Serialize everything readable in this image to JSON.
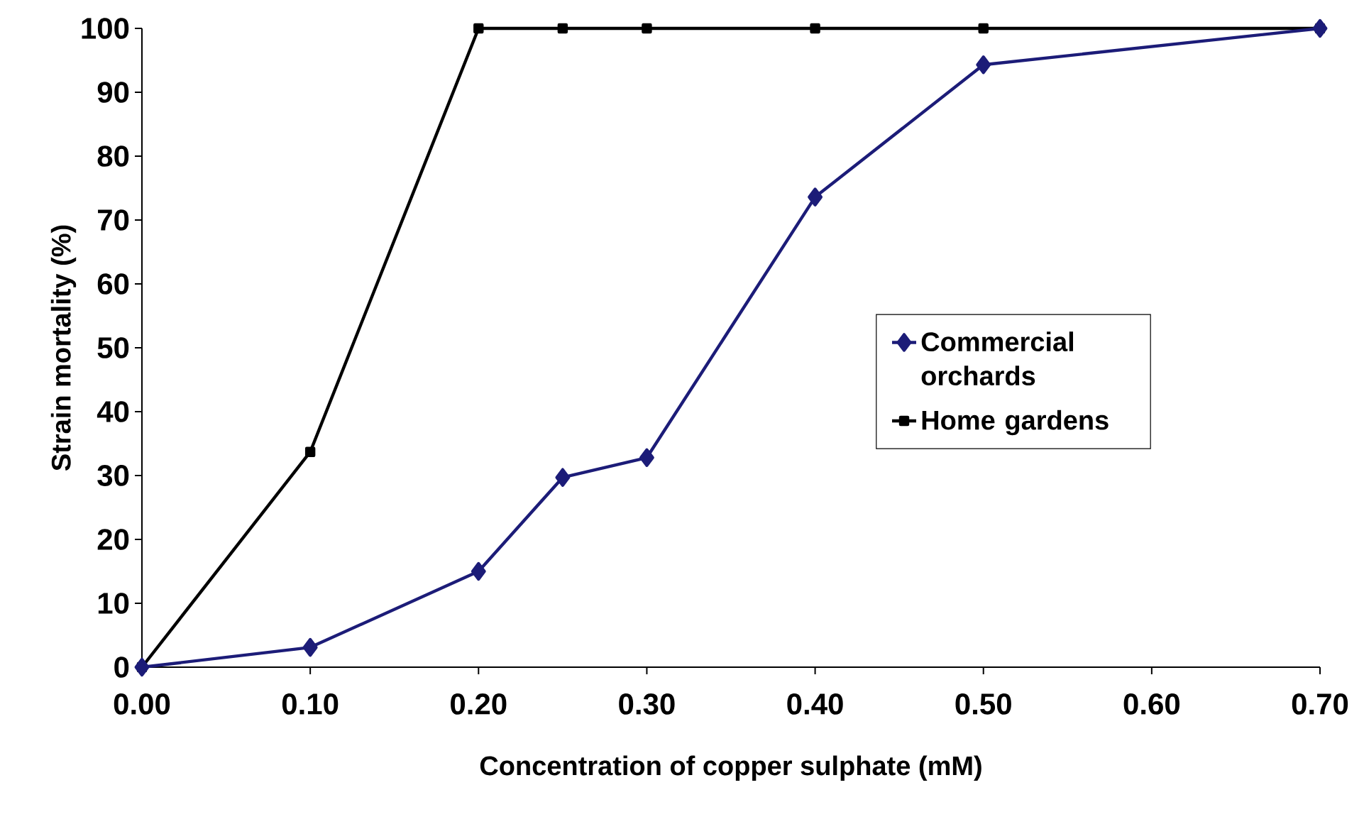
{
  "chart_data": {
    "type": "line",
    "xlabel": "Concentration of copper sulphate  (mM)",
    "ylabel": "Strain mortality (%)",
    "x": [
      0,
      0.1,
      0.2,
      0.25,
      0.3,
      0.4,
      0.5,
      0.7
    ],
    "series": [
      {
        "name": "Commercial orchards",
        "color": "#1c1c78",
        "marker": "diamond",
        "values": [
          0,
          3.1,
          15,
          29.7,
          32.8,
          73.6,
          94.3,
          100
        ]
      },
      {
        "name": "Home gardens",
        "color": "#000000",
        "marker": "square",
        "values": [
          0,
          33.7,
          100,
          100,
          100,
          100,
          100,
          100
        ]
      }
    ],
    "xlim": [
      0,
      0.7
    ],
    "xticks": [
      {
        "value": 0,
        "label": "0.00"
      },
      {
        "value": 0.1,
        "label": "0.10"
      },
      {
        "value": 0.2,
        "label": "0.20"
      },
      {
        "value": 0.3,
        "label": "0.30"
      },
      {
        "value": 0.4,
        "label": "0.40"
      },
      {
        "value": 0.5,
        "label": "0.50"
      },
      {
        "value": 0.6,
        "label": "0.60"
      },
      {
        "value": 0.7,
        "label": "0.70"
      }
    ],
    "ylim": [
      0,
      100
    ],
    "yticks": [
      0,
      10,
      20,
      30,
      40,
      50,
      60,
      70,
      80,
      90,
      100
    ],
    "grid": false,
    "legend": "right",
    "line_style": "solid"
  }
}
